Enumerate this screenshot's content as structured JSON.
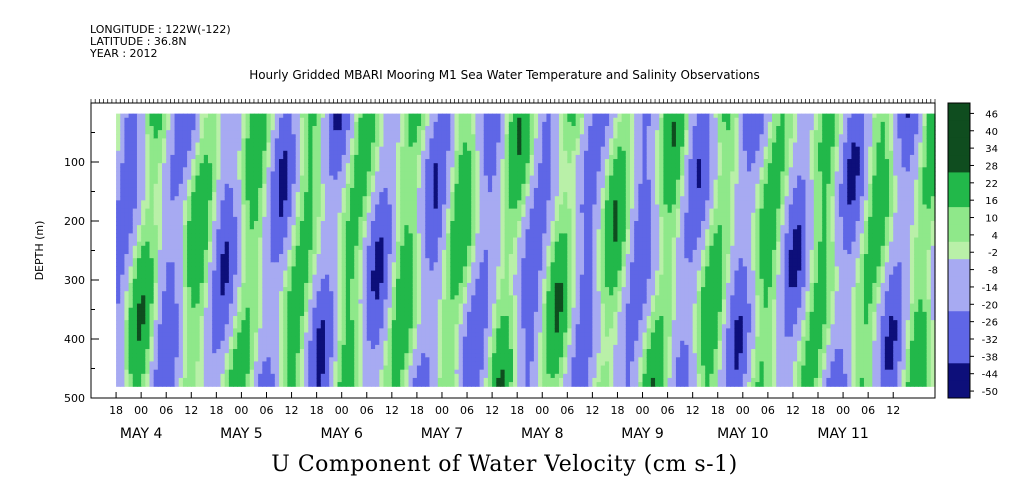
{
  "header": {
    "longitude": "LONGITUDE : 122W(-122)",
    "latitude": "LATITUDE : 36.8N",
    "year": "YEAR : 2012"
  },
  "title": "Hourly Gridded MBARI Mooring M1 Sea Water Temperature and Salinity Observations",
  "chart_data": {
    "type": "heatmap",
    "title": "Hourly Gridded MBARI Mooring M1 Sea Water Temperature and Salinity Observations",
    "xlabel": "",
    "ylabel": "DEPTH (m)",
    "colorbar_label": "U Component of Water Velocity (cm s-1)",
    "y_range": [
      500,
      0
    ],
    "y_ticks": [
      100,
      200,
      300,
      400,
      500
    ],
    "x_hour_ticks": [
      "18",
      "00",
      "06",
      "12",
      "18",
      "00",
      "06",
      "12",
      "18",
      "00",
      "06",
      "12",
      "18",
      "00",
      "06",
      "12",
      "18",
      "00",
      "06",
      "12",
      "18",
      "00",
      "06",
      "12",
      "18",
      "00",
      "06",
      "12",
      "18",
      "00",
      "06",
      "12"
    ],
    "x_day_labels": [
      "MAY  4",
      "MAY  5",
      "MAY  6",
      "MAY  7",
      "MAY  8",
      "MAY  9",
      "MAY 10",
      "MAY 11"
    ],
    "data_start_hour_offset": 6,
    "colorbar_ticks": [
      "46",
      "40",
      "34",
      "28",
      "22",
      "16",
      "10",
      "4",
      "-2",
      "-8",
      "-14",
      "-20",
      "-26",
      "-32",
      "-38",
      "-44",
      "-50"
    ],
    "colorbar_range": [
      -50,
      52
    ],
    "colors": {
      "strong_positive": "#0f4d1f",
      "positive": "#22b84a",
      "light_positive": "#8fe88a",
      "neutral": "#b9f0a8",
      "light_negative": "#a7aaf2",
      "negative": "#5f66e6",
      "strong_negative": "#0d0f7a"
    },
    "column_profile_note": "velocity alternates between positive (green) and negative (blue-violet) bands over time"
  }
}
